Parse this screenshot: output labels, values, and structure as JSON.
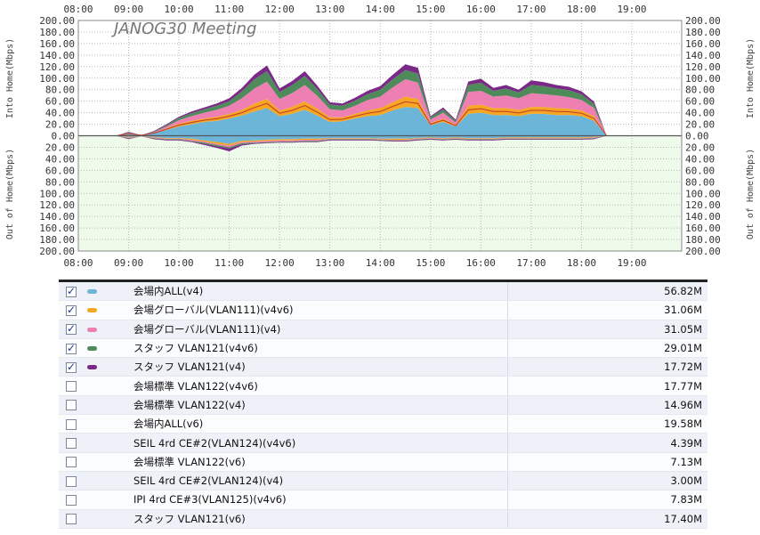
{
  "chart": {
    "title": "JANOG30 Meeting",
    "top_axis_label": "Into Home(Mbps)",
    "bottom_axis_label": "Out of Home(Mbps)",
    "time_ticks": [
      "08:00",
      "09:00",
      "10:00",
      "11:00",
      "12:00",
      "13:00",
      "14:00",
      "15:00",
      "16:00",
      "17:00",
      "18:00",
      "19:00"
    ],
    "y_ticks_into": [
      "200.00",
      "180.00",
      "160.00",
      "140.00",
      "120.00",
      "100.00",
      "80.00",
      "60.00",
      "40.00",
      "20.00",
      "0.00"
    ],
    "y_ticks_out": [
      "20.00",
      "40.00",
      "60.00",
      "80.00",
      "100.00",
      "120.00",
      "140.00",
      "160.00",
      "180.00",
      "200.00"
    ],
    "colors": {
      "into_bg": "#ffffff",
      "out_bg": "#eefaea",
      "grid": "#b8b8b8",
      "zero_line": "#555555"
    }
  },
  "chart_data": {
    "type": "area",
    "title": "JANOG30 Meeting",
    "ylabel": "Into Home(Mbps) / Out of Home(Mbps)",
    "ylim": [
      -200,
      200
    ],
    "x": [
      "08:00",
      "08:45",
      "09:00",
      "09:15",
      "09:30",
      "09:45",
      "10:00",
      "10:15",
      "10:30",
      "10:45",
      "11:00",
      "11:15",
      "11:30",
      "11:45",
      "12:00",
      "12:15",
      "12:30",
      "12:45",
      "13:00",
      "13:15",
      "13:30",
      "13:45",
      "14:00",
      "14:15",
      "14:30",
      "14:45",
      "15:00",
      "15:15",
      "15:30",
      "15:45",
      "16:00",
      "16:15",
      "16:30",
      "16:45",
      "17:00",
      "17:15",
      "17:30",
      "17:45",
      "18:00",
      "18:15",
      "18:30",
      "19:00",
      "19:45"
    ],
    "series": [
      {
        "name": "会場内ALL(v4)",
        "color": "#6cb4d8",
        "values": [
          0,
          0,
          3,
          1,
          4,
          10,
          16,
          20,
          24,
          26,
          30,
          35,
          42,
          48,
          34,
          38,
          45,
          35,
          24,
          25,
          30,
          34,
          36,
          44,
          50,
          48,
          18,
          24,
          16,
          38,
          40,
          36,
          36,
          34,
          38,
          38,
          36,
          36,
          34,
          26,
          0,
          0,
          0
        ],
        "out": [
          0,
          0,
          -2,
          -1,
          -2,
          -4,
          -4,
          -5,
          -8,
          -11,
          -14,
          -9,
          -8,
          -7,
          -6,
          -6,
          -5,
          -5,
          -4,
          -4,
          -4,
          -4,
          -5,
          -5,
          -5,
          -4,
          -3,
          -4,
          -3,
          -4,
          -4,
          -4,
          -3,
          -3,
          -3,
          -3,
          -3,
          -3,
          -3,
          -2,
          0,
          0,
          0
        ]
      },
      {
        "name": "会場グローバル(VLAN111)(v4v6)",
        "color": "#f5a623",
        "values": [
          0,
          0,
          1,
          0,
          1,
          3,
          5,
          6,
          6,
          7,
          8,
          10,
          14,
          16,
          10,
          12,
          15,
          12,
          8,
          7,
          8,
          10,
          12,
          14,
          18,
          16,
          4,
          6,
          3,
          14,
          14,
          12,
          12,
          11,
          12,
          12,
          12,
          11,
          10,
          8,
          0,
          0,
          0
        ],
        "out": [
          0,
          0,
          -1,
          0,
          -1,
          -1,
          -1,
          -2,
          -2,
          -3,
          -3,
          -2,
          -2,
          -2,
          -2,
          -2,
          -2,
          -2,
          -1,
          -1,
          -1,
          -1,
          -1,
          -2,
          -2,
          -1,
          -1,
          -1,
          -1,
          -1,
          -1,
          -1,
          -1,
          -1,
          -1,
          -1,
          -1,
          -1,
          -1,
          -1,
          0,
          0,
          0
        ]
      },
      {
        "name": "会場グローバル(VLAN111)(v4)",
        "color": "#ee7fb3",
        "values": [
          0,
          0,
          1,
          0,
          1,
          3,
          6,
          8,
          10,
          12,
          14,
          20,
          26,
          30,
          20,
          24,
          28,
          22,
          14,
          12,
          14,
          18,
          20,
          26,
          30,
          28,
          6,
          10,
          4,
          24,
          24,
          20,
          22,
          20,
          24,
          22,
          22,
          20,
          18,
          14,
          0,
          0,
          0
        ],
        "out": [
          0,
          0,
          -1,
          0,
          -1,
          -1,
          -1,
          -2,
          -2,
          -2,
          -3,
          -2,
          -2,
          -2,
          -2,
          -2,
          -2,
          -2,
          -1,
          -1,
          -1,
          -1,
          -1,
          -1,
          -1,
          -1,
          -1,
          -1,
          -1,
          -1,
          -1,
          -1,
          -1,
          -1,
          -1,
          -1,
          -1,
          -1,
          -1,
          -1,
          0,
          0,
          0
        ]
      },
      {
        "name": "スタッフ VLAN121(v4v6)",
        "color": "#4f8a5b",
        "values": [
          0,
          0,
          1,
          0,
          1,
          2,
          4,
          5,
          6,
          7,
          8,
          12,
          16,
          18,
          12,
          14,
          16,
          12,
          8,
          8,
          9,
          10,
          12,
          14,
          16,
          16,
          4,
          6,
          3,
          12,
          14,
          10,
          12,
          10,
          14,
          14,
          12,
          12,
          10,
          7,
          0,
          0,
          0
        ],
        "out": [
          0,
          0,
          -1,
          0,
          -1,
          -1,
          -1,
          -1,
          -2,
          -2,
          -2,
          -2,
          -1,
          -1,
          -1,
          -1,
          -1,
          -1,
          -1,
          -1,
          -1,
          -1,
          -1,
          -1,
          -1,
          -1,
          -1,
          -1,
          -1,
          -1,
          -1,
          -1,
          -1,
          -1,
          -1,
          -1,
          -1,
          -1,
          -1,
          -1,
          0,
          0,
          0
        ]
      },
      {
        "name": "スタッフ VLAN121(v4)",
        "color": "#7a2a86",
        "values": [
          0,
          0,
          1,
          0,
          1,
          2,
          2,
          3,
          3,
          4,
          5,
          6,
          8,
          10,
          6,
          7,
          8,
          6,
          4,
          4,
          5,
          6,
          6,
          8,
          10,
          10,
          2,
          3,
          2,
          6,
          7,
          5,
          6,
          5,
          8,
          7,
          6,
          6,
          5,
          4,
          0,
          0,
          0
        ],
        "out": [
          0,
          0,
          -1,
          0,
          -1,
          -1,
          -1,
          -1,
          -2,
          -3,
          -5,
          -2,
          -1,
          -1,
          -1,
          -1,
          -1,
          -1,
          -1,
          -1,
          -1,
          -1,
          -1,
          -1,
          -1,
          -1,
          -1,
          -1,
          -1,
          -1,
          -1,
          -1,
          -1,
          -1,
          -1,
          -1,
          -1,
          -1,
          -1,
          -1,
          0,
          0,
          0
        ]
      }
    ]
  },
  "legend": [
    {
      "name": "会場内ALL(v4)",
      "value": "56.82M",
      "checked": true,
      "color": "#6cb4d8"
    },
    {
      "name": "会場グローバル(VLAN111)(v4v6)",
      "value": "31.06M",
      "checked": true,
      "color": "#f5a623"
    },
    {
      "name": "会場グローバル(VLAN111)(v4)",
      "value": "31.05M",
      "checked": true,
      "color": "#ee7fb3"
    },
    {
      "name": "スタッフ VLAN121(v4v6)",
      "value": "29.01M",
      "checked": true,
      "color": "#4f8a5b"
    },
    {
      "name": "スタッフ VLAN121(v4)",
      "value": "17.72M",
      "checked": true,
      "color": "#7a2a86"
    },
    {
      "name": "会場標準 VLAN122(v4v6)",
      "value": "17.77M",
      "checked": false,
      "color": ""
    },
    {
      "name": "会場標準 VLAN122(v4)",
      "value": "14.96M",
      "checked": false,
      "color": ""
    },
    {
      "name": "会場内ALL(v6)",
      "value": "19.58M",
      "checked": false,
      "color": ""
    },
    {
      "name": "SEIL 4rd CE#2(VLAN124)(v4v6)",
      "value": "4.39M",
      "checked": false,
      "color": ""
    },
    {
      "name": "会場標準 VLAN122(v6)",
      "value": "7.13M",
      "checked": false,
      "color": ""
    },
    {
      "name": "SEIL 4rd CE#2(VLAN124)(v4)",
      "value": "3.00M",
      "checked": false,
      "color": ""
    },
    {
      "name": "IPI 4rd CE#3(VLAN125)(v4v6)",
      "value": "7.83M",
      "checked": false,
      "color": ""
    },
    {
      "name": "スタッフ VLAN121(v6)",
      "value": "17.40M",
      "checked": false,
      "color": ""
    }
  ]
}
